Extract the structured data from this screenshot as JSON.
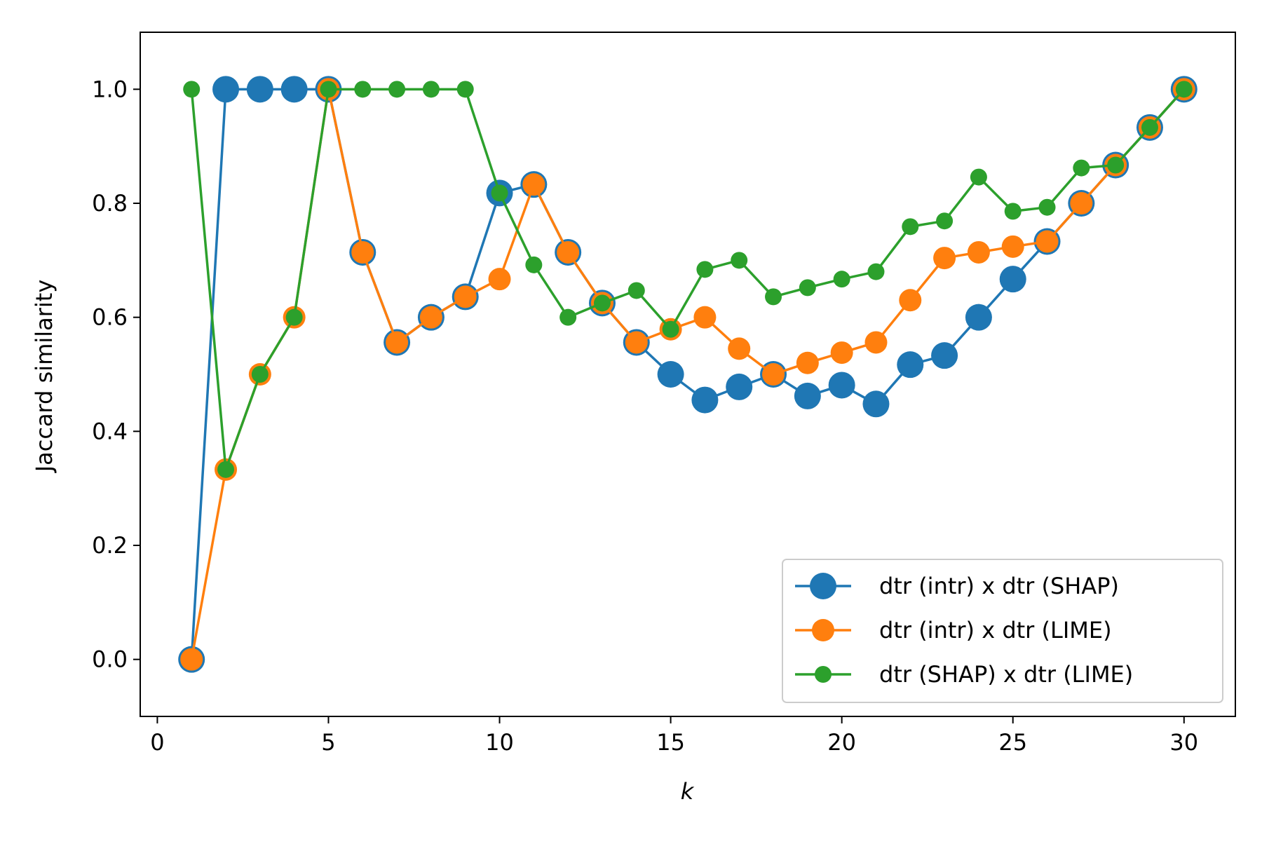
{
  "chart_data": {
    "type": "line",
    "title": "",
    "xlabel": "k",
    "ylabel": "Jaccard similarity",
    "xlim": [
      -0.5,
      31.5
    ],
    "ylim": [
      -0.1,
      1.1
    ],
    "xticks": [
      0,
      5,
      10,
      15,
      20,
      25,
      30
    ],
    "xtick_labels": [
      "0",
      "5",
      "10",
      "15",
      "20",
      "25",
      "30"
    ],
    "yticks": [
      0.0,
      0.2,
      0.4,
      0.6,
      0.8,
      1.0
    ],
    "ytick_labels": [
      "0.0",
      "0.2",
      "0.4",
      "0.6",
      "0.8",
      "1.0"
    ],
    "grid": false,
    "legend_position": "bottom-right",
    "x": [
      1,
      2,
      3,
      4,
      5,
      6,
      7,
      8,
      9,
      10,
      11,
      12,
      13,
      14,
      15,
      16,
      17,
      18,
      19,
      20,
      21,
      22,
      23,
      24,
      25,
      26,
      27,
      28,
      29,
      30
    ],
    "series": [
      {
        "name": "dtr (intr) x dtr (SHAP)",
        "color": "#1f77b4",
        "marker_size": "large",
        "values": [
          0.0,
          1.0,
          1.0,
          1.0,
          1.0,
          0.714,
          0.556,
          0.6,
          0.636,
          0.818,
          0.833,
          0.714,
          0.625,
          0.556,
          0.5,
          0.455,
          0.478,
          0.5,
          0.462,
          0.481,
          0.448,
          0.517,
          0.533,
          0.6,
          0.667,
          0.733,
          0.8,
          0.867,
          0.933,
          1.0
        ]
      },
      {
        "name": "dtr (intr) x dtr (LIME)",
        "color": "#ff7f0e",
        "marker_size": "medium",
        "values": [
          0.0,
          0.333,
          0.5,
          0.6,
          1.0,
          0.714,
          0.556,
          0.6,
          0.636,
          0.667,
          0.833,
          0.714,
          0.625,
          0.556,
          0.579,
          0.6,
          0.545,
          0.5,
          0.52,
          0.538,
          0.556,
          0.63,
          0.704,
          0.714,
          0.724,
          0.733,
          0.8,
          0.867,
          0.933,
          1.0
        ]
      },
      {
        "name": "dtr (SHAP) x dtr (LIME)",
        "color": "#2ca02c",
        "marker_size": "small",
        "values": [
          1.0,
          0.333,
          0.5,
          0.6,
          1.0,
          1.0,
          1.0,
          1.0,
          1.0,
          0.818,
          0.692,
          0.6,
          0.625,
          0.647,
          0.579,
          0.684,
          0.7,
          0.636,
          0.652,
          0.667,
          0.68,
          0.759,
          0.769,
          0.846,
          0.786,
          0.793,
          0.862,
          0.867,
          0.933,
          1.0
        ]
      }
    ]
  }
}
